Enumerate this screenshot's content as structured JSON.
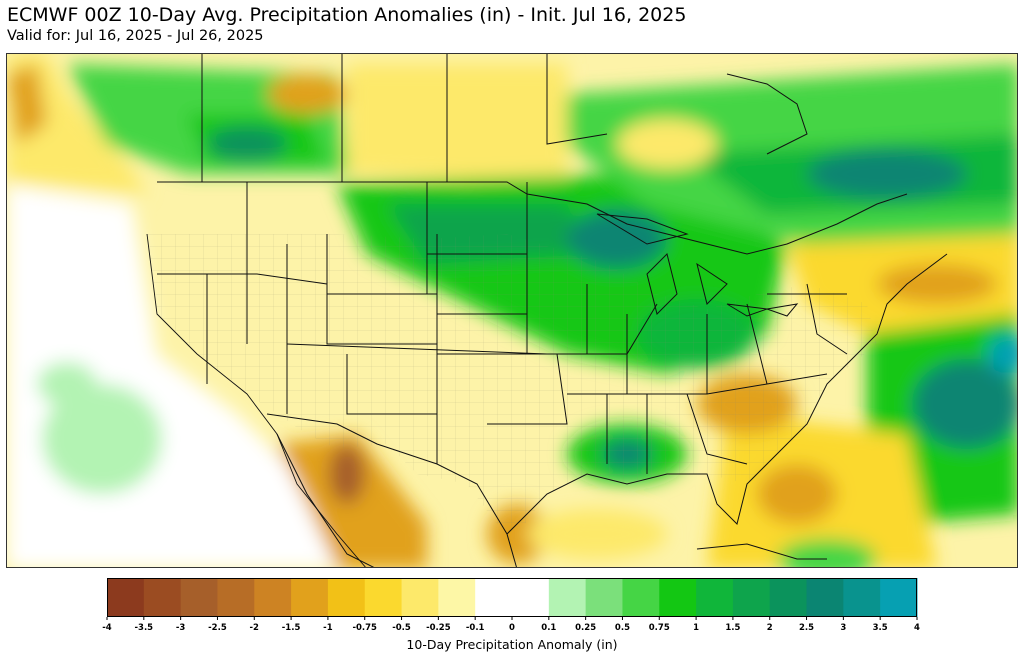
{
  "title": "ECMWF 00Z 10-Day Avg. Precipitation Anomalies (in) - Init. Jul 16, 2025",
  "subtitle": "Valid for: Jul 16, 2025 - Jul 26, 2025",
  "colorbar": {
    "label": "10-Day Precipitation Anomaly (in)",
    "ticks": [
      "-4",
      "-3.5",
      "-3",
      "-2.5",
      "-2",
      "-1.5",
      "-1",
      "-0.75",
      "-0.5",
      "-0.25",
      "-0.1",
      "0",
      "0.1",
      "0.25",
      "0.5",
      "0.75",
      "1",
      "1.5",
      "2",
      "2.5",
      "3",
      "3.5",
      "4"
    ],
    "bins": [
      {
        "from": "-4",
        "to": "-3.5",
        "color": "#8c3a1e"
      },
      {
        "from": "-3.5",
        "to": "-3",
        "color": "#9b4c22"
      },
      {
        "from": "-3",
        "to": "-2.5",
        "color": "#a65f2a"
      },
      {
        "from": "-2.5",
        "to": "-2",
        "color": "#b76d26"
      },
      {
        "from": "-2",
        "to": "-1.5",
        "color": "#cd8323"
      },
      {
        "from": "-1.5",
        "to": "-1",
        "color": "#e1a11c"
      },
      {
        "from": "-1",
        "to": "-0.75",
        "color": "#f2c117"
      },
      {
        "from": "-0.75",
        "to": "-0.5",
        "color": "#fbd92e"
      },
      {
        "from": "-0.5",
        "to": "-0.25",
        "color": "#fde96a"
      },
      {
        "from": "-0.25",
        "to": "-0.1",
        "color": "#fdf7a6"
      },
      {
        "from": "-0.1",
        "to": "0",
        "color": "#ffffff"
      },
      {
        "from": "0",
        "to": "0.1",
        "color": "#ffffff"
      },
      {
        "from": "0.1",
        "to": "0.25",
        "color": "#b3f3b3"
      },
      {
        "from": "0.25",
        "to": "0.5",
        "color": "#7be07b"
      },
      {
        "from": "0.5",
        "to": "0.75",
        "color": "#45d545"
      },
      {
        "from": "0.75",
        "to": "1",
        "color": "#13c713"
      },
      {
        "from": "1",
        "to": "1.5",
        "color": "#10b63a"
      },
      {
        "from": "1.5",
        "to": "2",
        "color": "#0ea44c"
      },
      {
        "from": "2",
        "to": "2.5",
        "color": "#0b935c"
      },
      {
        "from": "2.5",
        "to": "3",
        "color": "#0b8572"
      },
      {
        "from": "3",
        "to": "3.5",
        "color": "#09938e"
      },
      {
        "from": "3.5",
        "to": "4",
        "color": "#06a0b2"
      }
    ]
  }
}
